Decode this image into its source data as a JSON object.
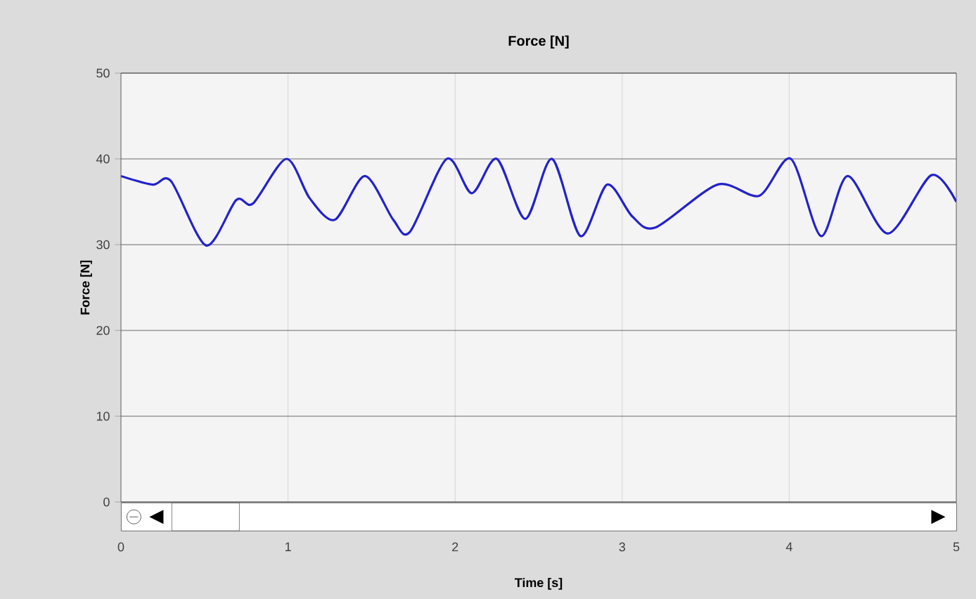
{
  "chart_data": {
    "type": "line",
    "title": "Force [N]",
    "xlabel": "Time [s]",
    "ylabel": "Force [N]",
    "x": [
      0.0,
      0.19,
      0.3,
      0.51,
      0.69,
      0.79,
      0.99,
      1.13,
      1.28,
      1.46,
      1.63,
      1.73,
      1.95,
      2.1,
      2.25,
      2.42,
      2.58,
      2.75,
      2.91,
      3.06,
      3.2,
      3.57,
      3.82,
      4.01,
      4.19,
      4.35,
      4.59,
      4.85,
      5.0
    ],
    "series": [
      {
        "color": "#2222cc",
        "values": [
          38,
          37,
          37.4,
          29.9,
          35.2,
          34.8,
          40,
          35.4,
          32.9,
          38,
          32.9,
          31.5,
          40,
          36,
          40,
          33,
          40,
          31,
          37,
          33.3,
          32,
          37,
          35.7,
          40,
          31,
          38,
          31.3,
          38.1,
          35
        ]
      }
    ],
    "xlim": [
      0,
      5
    ],
    "ylim": [
      0,
      50
    ],
    "xticks": [
      0,
      1,
      2,
      3,
      4,
      5
    ],
    "yticks": [
      0,
      10,
      20,
      30,
      40,
      50
    ],
    "grid": true,
    "marker": "none",
    "line_style": "solid"
  }
}
